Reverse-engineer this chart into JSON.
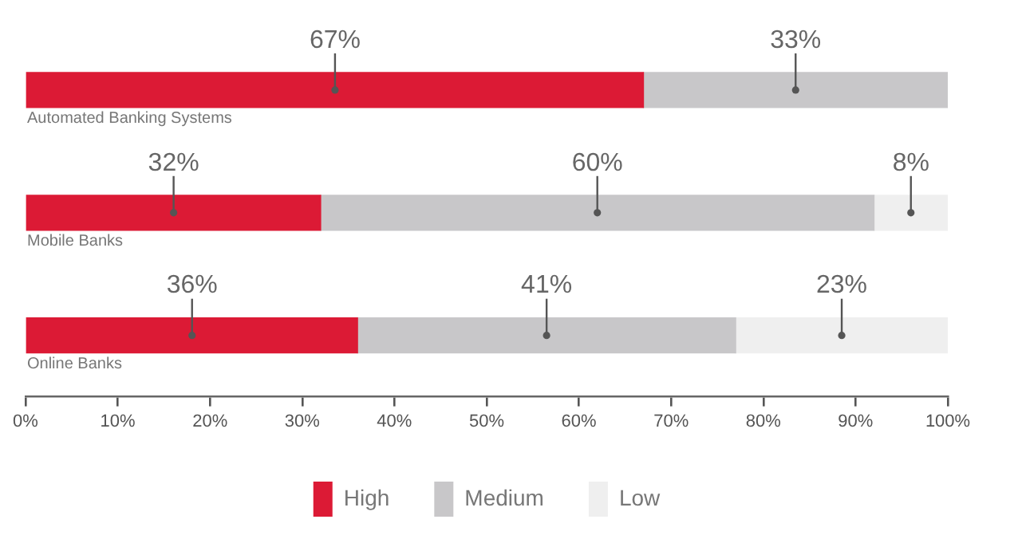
{
  "chart_data": {
    "type": "bar",
    "orientation": "horizontal",
    "stacked": true,
    "categories": [
      "Automated Banking Systems",
      "Mobile Banks",
      "Online Banks"
    ],
    "series": [
      {
        "name": "High",
        "color": "#dc1a35",
        "values": [
          67,
          32,
          36
        ],
        "value_labels": [
          "67%",
          "32%",
          "36%"
        ]
      },
      {
        "name": "Medium",
        "color": "#c8c7c9",
        "values": [
          33,
          60,
          41
        ],
        "value_labels": [
          "33%",
          "60%",
          "41%"
        ]
      },
      {
        "name": "Low",
        "color": "#efefef",
        "values": [
          0,
          8,
          23
        ],
        "value_labels": [
          null,
          "8%",
          "23%"
        ]
      }
    ],
    "xlim": [
      0,
      100
    ],
    "xticks": [
      {
        "value": 0,
        "label": "0%"
      },
      {
        "value": 10,
        "label": "10%"
      },
      {
        "value": 20,
        "label": "20%"
      },
      {
        "value": 30,
        "label": "30%"
      },
      {
        "value": 40,
        "label": "40%"
      },
      {
        "value": 50,
        "label": "50%"
      },
      {
        "value": 60,
        "label": "60%"
      },
      {
        "value": 70,
        "label": "70%"
      },
      {
        "value": 80,
        "label": "80%"
      },
      {
        "value": 90,
        "label": "90%"
      },
      {
        "value": 100,
        "label": "100%"
      }
    ],
    "grid": false,
    "legend": "bottom"
  }
}
